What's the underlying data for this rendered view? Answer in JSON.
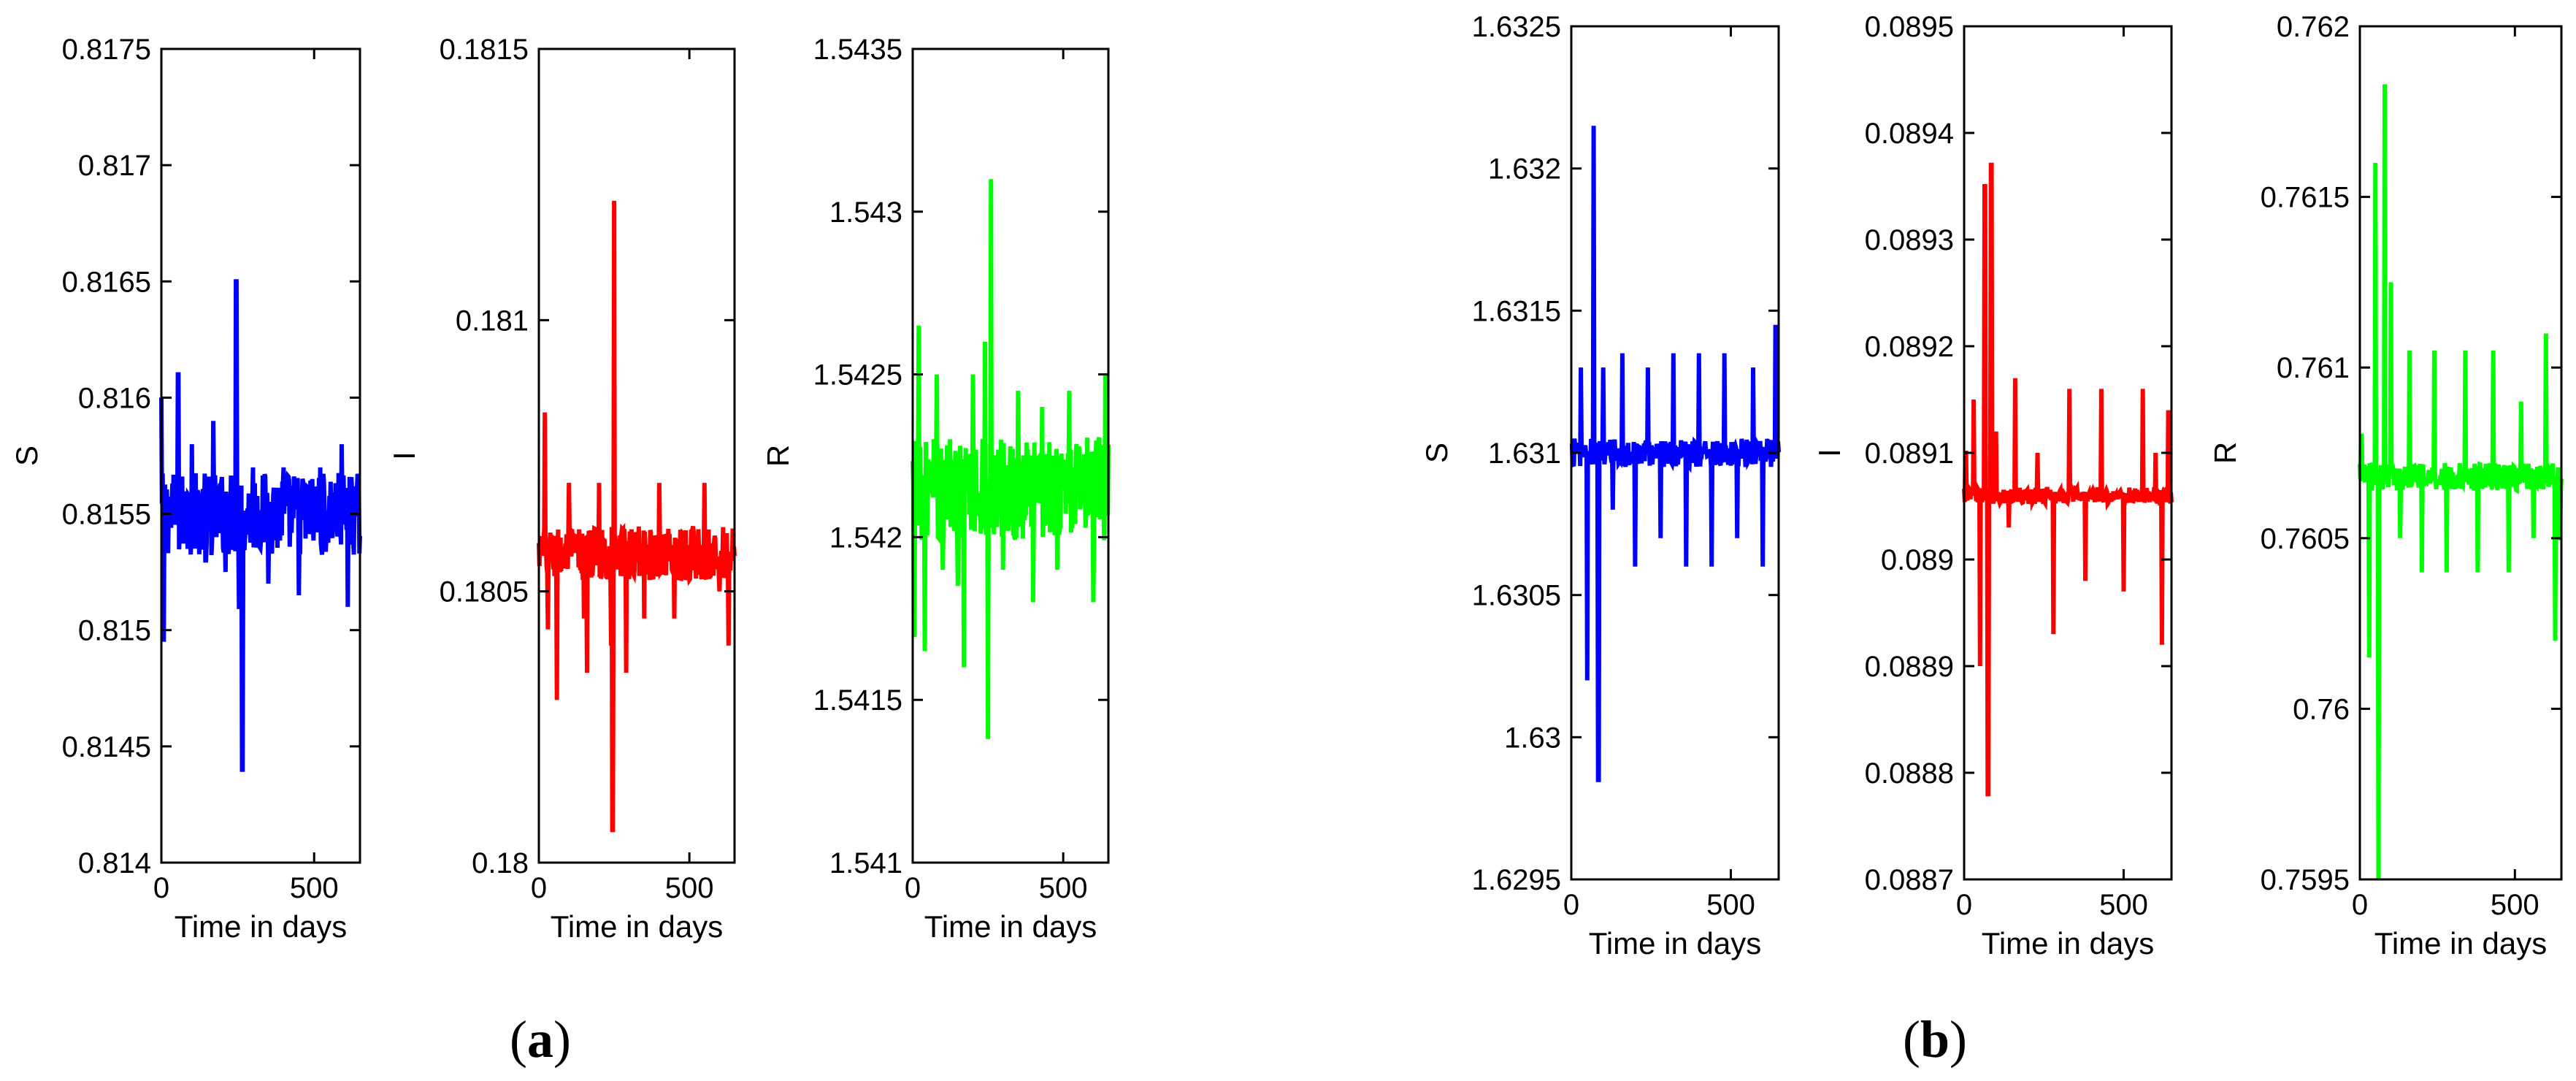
{
  "figure": {
    "panel_a_label": "a",
    "panel_b_label": "b"
  },
  "chart_data": [
    {
      "panel": "a",
      "type": "line",
      "xlabel": "Time in days",
      "ylabel": "S",
      "xlim": [
        0,
        650
      ],
      "xticks": [
        0,
        500
      ],
      "xtick_labels": [
        "0",
        "500"
      ],
      "ylim": [
        0.814,
        0.8175
      ],
      "yticks": [
        0.814,
        0.8145,
        0.815,
        0.8155,
        0.816,
        0.8165,
        0.817,
        0.8175
      ],
      "ytick_labels": [
        "0.814",
        "0.8145",
        "0.815",
        "0.8155",
        "0.816",
        "0.8165",
        "0.817",
        "0.8175"
      ],
      "color": "#0000ff",
      "series": [
        {
          "baseline": 0.8155,
          "noise": 0.00018,
          "spikes": [
            [
              0,
              0.816
            ],
            [
              8,
              0.81495
            ],
            [
              55,
              0.8161
            ],
            [
              100,
              0.8158
            ],
            [
              145,
              0.8153
            ],
            [
              170,
              0.8159
            ],
            [
              210,
              0.81525
            ],
            [
              245,
              0.8165
            ],
            [
              255,
              0.8151
            ],
            [
              265,
              0.8144
            ],
            [
              300,
              0.8157
            ],
            [
              350,
              0.8152
            ],
            [
              400,
              0.8157
            ],
            [
              450,
              0.81515
            ],
            [
              520,
              0.8157
            ],
            [
              540,
              0.8154
            ],
            [
              590,
              0.8158
            ],
            [
              610,
              0.8151
            ],
            [
              640,
              0.8156
            ]
          ]
        }
      ]
    },
    {
      "panel": "a",
      "type": "line",
      "xlabel": "Time in days",
      "ylabel": "I",
      "xlim": [
        0,
        650
      ],
      "xticks": [
        0,
        500
      ],
      "xtick_labels": [
        "0",
        "500"
      ],
      "ylim": [
        0.18,
        0.1815
      ],
      "yticks": [
        0.18,
        0.1805,
        0.181,
        0.1815
      ],
      "ytick_labels": [
        "0.18",
        "0.1805",
        "0.181",
        "0.1815"
      ],
      "color": "#ff0000",
      "series": [
        {
          "baseline": 0.18057,
          "noise": 5e-05,
          "spikes": [
            [
              20,
              0.18083
            ],
            [
              30,
              0.18043
            ],
            [
              60,
              0.1803
            ],
            [
              100,
              0.1807
            ],
            [
              150,
              0.18045
            ],
            [
              160,
              0.18035
            ],
            [
              200,
              0.1807
            ],
            [
              240,
              0.1804
            ],
            [
              245,
              0.18006
            ],
            [
              250,
              0.18122
            ],
            [
              290,
              0.18035
            ],
            [
              350,
              0.18045
            ],
            [
              400,
              0.1807
            ],
            [
              450,
              0.18045
            ],
            [
              550,
              0.1807
            ],
            [
              600,
              0.1805
            ],
            [
              630,
              0.1804
            ]
          ]
        }
      ]
    },
    {
      "panel": "a",
      "type": "line",
      "xlabel": "Time in days",
      "ylabel": "R",
      "xlim": [
        0,
        650
      ],
      "xticks": [
        0,
        500
      ],
      "xtick_labels": [
        "0",
        "500"
      ],
      "ylim": [
        1.541,
        1.5435
      ],
      "yticks": [
        1.541,
        1.5415,
        1.542,
        1.5425,
        1.543,
        1.5435
      ],
      "ytick_labels": [
        "1.541",
        "1.5415",
        "1.542",
        "1.5425",
        "1.543",
        "1.5435"
      ],
      "color": "#00ff00",
      "series": [
        {
          "baseline": 1.54215,
          "noise": 0.00016,
          "spikes": [
            [
              5,
              1.5417
            ],
            [
              20,
              1.54265
            ],
            [
              40,
              1.54165
            ],
            [
              80,
              1.5425
            ],
            [
              100,
              1.5419
            ],
            [
              150,
              1.54185
            ],
            [
              170,
              1.5416
            ],
            [
              200,
              1.5425
            ],
            [
              240,
              1.5426
            ],
            [
              250,
              1.54138
            ],
            [
              260,
              1.5431
            ],
            [
              300,
              1.5419
            ],
            [
              350,
              1.54245
            ],
            [
              400,
              1.5418
            ],
            [
              430,
              1.5424
            ],
            [
              480,
              1.5419
            ],
            [
              520,
              1.54245
            ],
            [
              600,
              1.5418
            ],
            [
              640,
              1.5425
            ]
          ]
        }
      ]
    },
    {
      "panel": "b",
      "type": "line",
      "xlabel": "Time in days",
      "ylabel": "S",
      "xlim": [
        0,
        650
      ],
      "xticks": [
        0,
        500
      ],
      "xtick_labels": [
        "0",
        "500"
      ],
      "ylim": [
        1.6295,
        1.6325
      ],
      "yticks": [
        1.6295,
        1.63,
        1.6305,
        1.631,
        1.6315,
        1.632,
        1.6325
      ],
      "ytick_labels": [
        "1.6295",
        "1.63",
        "1.6305",
        "1.631",
        "1.6315",
        "1.632",
        "1.6325"
      ],
      "color": "#0000ff",
      "series": [
        {
          "baseline": 1.631,
          "noise": 5e-05,
          "spikes": [
            [
              10,
              1.63105
            ],
            [
              30,
              1.6313
            ],
            [
              50,
              1.6302
            ],
            [
              70,
              1.63215
            ],
            [
              85,
              1.62985
            ],
            [
              100,
              1.6313
            ],
            [
              130,
              1.6308
            ],
            [
              160,
              1.63135
            ],
            [
              200,
              1.6306
            ],
            [
              240,
              1.6313
            ],
            [
              280,
              1.6307
            ],
            [
              320,
              1.63135
            ],
            [
              360,
              1.6306
            ],
            [
              400,
              1.63135
            ],
            [
              440,
              1.6306
            ],
            [
              480,
              1.63135
            ],
            [
              520,
              1.6307
            ],
            [
              570,
              1.6313
            ],
            [
              600,
              1.6306
            ],
            [
              640,
              1.63145
            ]
          ]
        }
      ]
    },
    {
      "panel": "b",
      "type": "line",
      "xlabel": "Time in days",
      "ylabel": "I",
      "xlim": [
        0,
        650
      ],
      "xticks": [
        0,
        500
      ],
      "xtick_labels": [
        "0",
        "500"
      ],
      "ylim": [
        0.0887,
        0.0895
      ],
      "yticks": [
        0.0887,
        0.0888,
        0.0889,
        0.089,
        0.0891,
        0.0892,
        0.0893,
        0.0894,
        0.0895
      ],
      "ytick_labels": [
        "0.0887",
        "0.0888",
        "0.0889",
        "0.089",
        "0.0891",
        "0.0892",
        "0.0893",
        "0.0894",
        "0.0895"
      ],
      "color": "#ff0000",
      "series": [
        {
          "baseline": 0.08906,
          "noise": 8e-06,
          "spikes": [
            [
              5,
              0.0891
            ],
            [
              30,
              0.08915
            ],
            [
              50,
              0.0889
            ],
            [
              65,
              0.08935
            ],
            [
              75,
              0.08878
            ],
            [
              85,
              0.08937
            ],
            [
              100,
              0.08912
            ],
            [
              140,
              0.08903
            ],
            [
              160,
              0.08917
            ],
            [
              200,
              0.08906
            ],
            [
              230,
              0.0891
            ],
            [
              280,
              0.08893
            ],
            [
              330,
              0.08916
            ],
            [
              380,
              0.08898
            ],
            [
              430,
              0.08916
            ],
            [
              500,
              0.08897
            ],
            [
              560,
              0.08916
            ],
            [
              600,
              0.0891
            ],
            [
              620,
              0.08892
            ],
            [
              640,
              0.08914
            ]
          ]
        }
      ]
    },
    {
      "panel": "b",
      "type": "line",
      "xlabel": "Time in days",
      "ylabel": "R",
      "xlim": [
        0,
        650
      ],
      "xticks": [
        0,
        500
      ],
      "xtick_labels": [
        "0",
        "500"
      ],
      "ylim": [
        0.7595,
        0.762
      ],
      "yticks": [
        0.7595,
        0.76,
        0.7605,
        0.761,
        0.7615,
        0.762
      ],
      "ytick_labels": [
        "0.7595",
        "0.76",
        "0.7605",
        "0.761",
        "0.7615",
        "0.762"
      ],
      "color": "#00ff00",
      "series": [
        {
          "baseline": 0.76068,
          "noise": 4e-05,
          "spikes": [
            [
              5,
              0.7608
            ],
            [
              30,
              0.76015
            ],
            [
              50,
              0.7616
            ],
            [
              60,
              0.7595
            ],
            [
              80,
              0.76183
            ],
            [
              100,
              0.76125
            ],
            [
              130,
              0.7605
            ],
            [
              160,
              0.76105
            ],
            [
              200,
              0.7604
            ],
            [
              240,
              0.76105
            ],
            [
              280,
              0.7604
            ],
            [
              340,
              0.76105
            ],
            [
              380,
              0.7604
            ],
            [
              430,
              0.76105
            ],
            [
              480,
              0.7604
            ],
            [
              520,
              0.7609
            ],
            [
              560,
              0.7605
            ],
            [
              600,
              0.7611
            ],
            [
              630,
              0.7602
            ],
            [
              645,
              0.7605
            ]
          ]
        }
      ]
    }
  ]
}
